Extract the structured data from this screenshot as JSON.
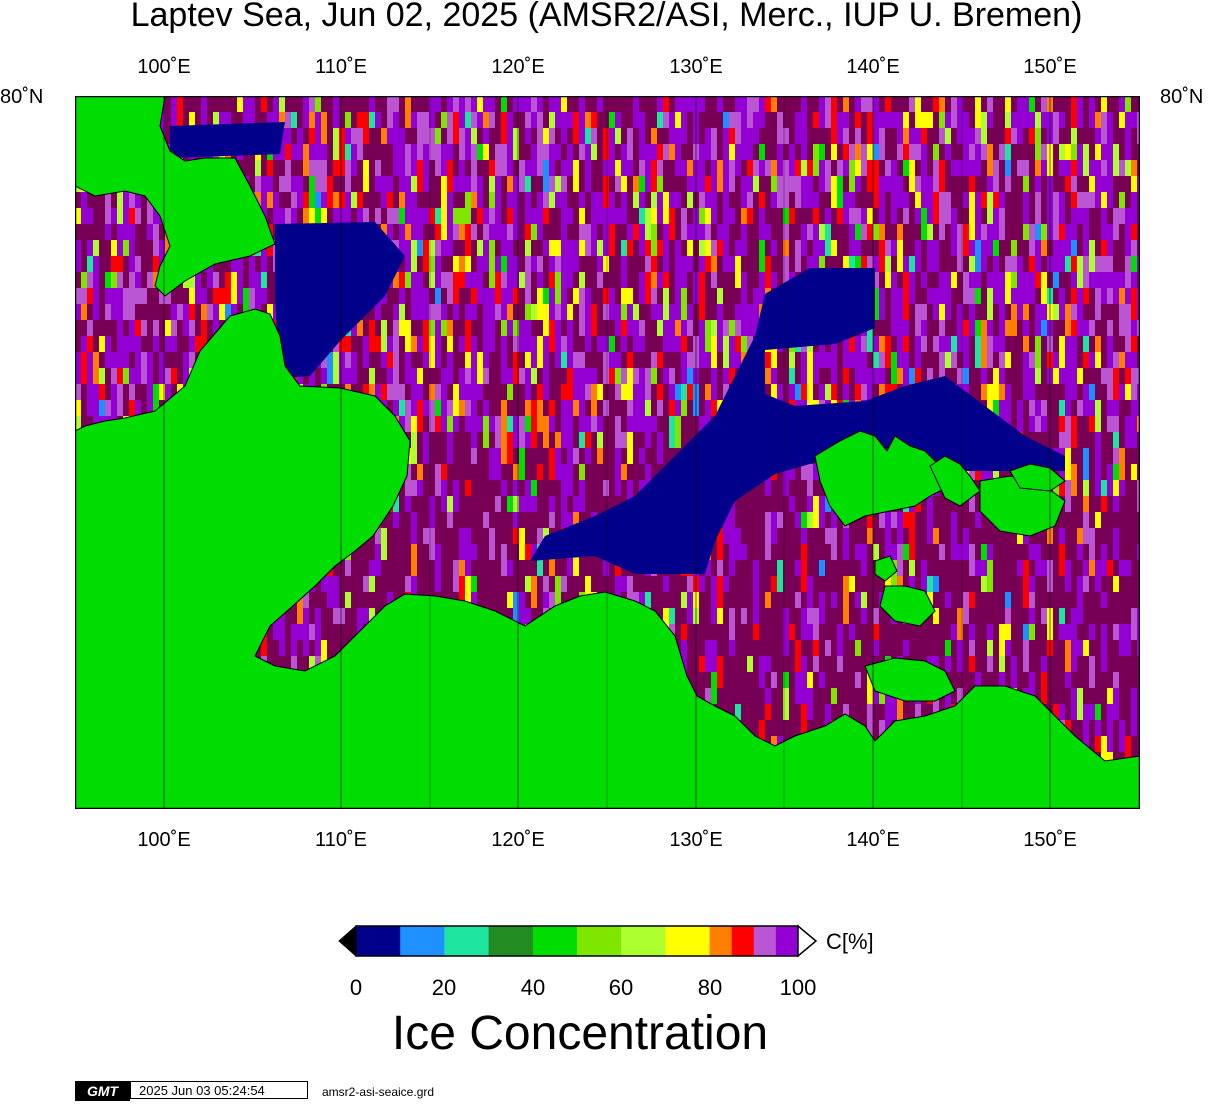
{
  "title": "Laptev Sea, Jun 02, 2025 (AMSR2/ASI, Merc., IUP U. Bremen)",
  "lon_labels": [
    "100˚E",
    "110˚E",
    "120˚E",
    "130˚E",
    "140˚E",
    "150˚E"
  ],
  "lat_label_left": "80˚N",
  "lat_label_right": "80˚N",
  "colors": {
    "land": "#00dd00",
    "land_ice_background": "#770055",
    "open_water": "#00008b",
    "gridline": "#000000"
  },
  "colorbar": {
    "ticks": [
      "0",
      "20",
      "40",
      "60",
      "80",
      "100"
    ],
    "unit": "C[%]",
    "bins": [
      {
        "from": 0,
        "to": 10,
        "color": "#00008b"
      },
      {
        "from": 10,
        "to": 20,
        "color": "#1e90ff"
      },
      {
        "from": 20,
        "to": 30,
        "color": "#1ee6a0"
      },
      {
        "from": 30,
        "to": 40,
        "color": "#228b22"
      },
      {
        "from": 40,
        "to": 50,
        "color": "#00dd00"
      },
      {
        "from": 50,
        "to": 60,
        "color": "#7fe600"
      },
      {
        "from": 60,
        "to": 70,
        "color": "#adff2f"
      },
      {
        "from": 70,
        "to": 80,
        "color": "#ffff00"
      },
      {
        "from": 80,
        "to": 85,
        "color": "#ff7f00"
      },
      {
        "from": 85,
        "to": 90,
        "color": "#ff0000"
      },
      {
        "from": 90,
        "to": 95,
        "color": "#ba55d3"
      },
      {
        "from": 95,
        "to": 100,
        "color": "#9400d3"
      }
    ]
  },
  "colorbar_title": "Ice Concentration",
  "gmt_logo": "GMT",
  "timestamp": "2025 Jun 03 05:24:54",
  "filename": "amsr2-asi-seaice.grd"
}
